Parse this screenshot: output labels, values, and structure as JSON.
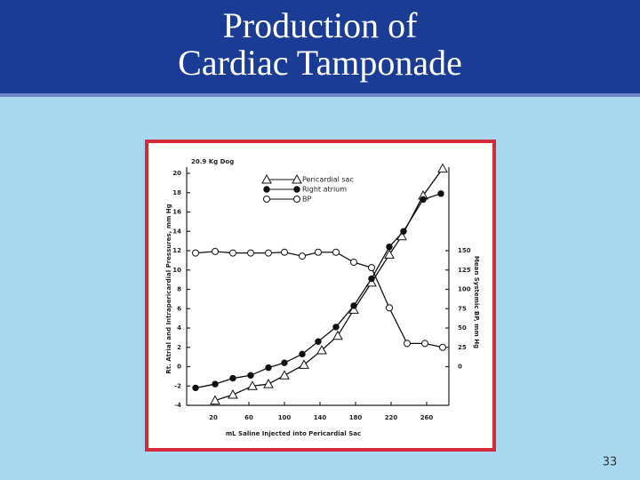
{
  "slide": {
    "title": "Production of\nCardiac Tamponade",
    "page_number": "33"
  },
  "chart_data": {
    "type": "line",
    "annotation": "20.9 Kg Dog",
    "x_label": "mL Saline Injected into Pericardial Sac",
    "y_label": "Rt. Atrial and Intrapericardial Pressures, mm Hg",
    "y2_label": "Mean Systemic BP, mm Hg",
    "xlim": [
      -10,
      285
    ],
    "xticks": [
      20,
      60,
      100,
      140,
      180,
      220,
      260
    ],
    "ylim": [
      -4,
      20
    ],
    "yticks": [
      -4,
      -2,
      0,
      2,
      4,
      6,
      8,
      10,
      12,
      14,
      16,
      18,
      20
    ],
    "y2lim": [
      -50,
      250
    ],
    "y2ticks": [
      0,
      25,
      50,
      75,
      100,
      125,
      150
    ],
    "legend": "top-left",
    "series": [
      {
        "name": "Pericardial sac",
        "color": "#111111",
        "marker": "triangle",
        "x": [
          22,
          42,
          64,
          82,
          100,
          122,
          142,
          160,
          178,
          198,
          218,
          232,
          256,
          278
        ],
        "values": [
          -3.5,
          -2.9,
          -2.0,
          -1.8,
          -0.9,
          0.2,
          1.7,
          3.2,
          5.9,
          8.7,
          11.6,
          13.5,
          17.7,
          20.5
        ]
      },
      {
        "name": "Right atrium",
        "color": "#111111",
        "marker": "dot",
        "x": [
          0,
          22,
          42,
          62,
          82,
          100,
          120,
          138,
          158,
          178,
          198,
          218,
          234,
          256,
          276
        ],
        "values": [
          -2.2,
          -1.8,
          -1.2,
          -0.9,
          -0.1,
          0.4,
          1.3,
          2.6,
          4.1,
          6.3,
          9.1,
          12.4,
          14.0,
          17.3,
          17.9
        ]
      },
      {
        "name": "BP",
        "color": "#111111",
        "marker": "circle",
        "axis": "y2",
        "x": [
          0,
          22,
          42,
          62,
          82,
          100,
          120,
          138,
          158,
          178,
          198,
          218,
          238,
          258,
          278
        ],
        "values": [
          147,
          149,
          147,
          147,
          147,
          148,
          143,
          148,
          148,
          135,
          128,
          76,
          30,
          30,
          25
        ]
      }
    ]
  }
}
